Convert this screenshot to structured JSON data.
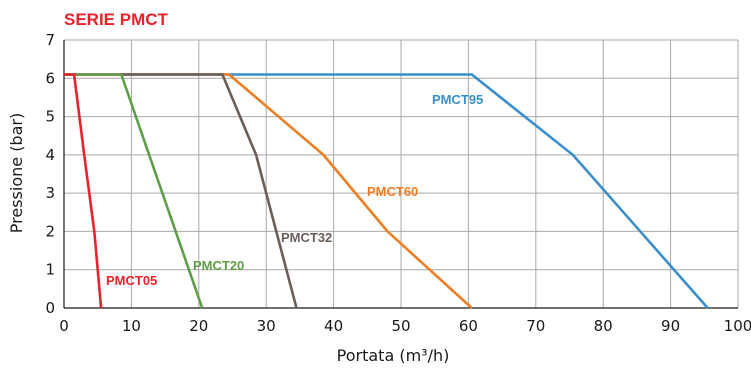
{
  "chart_data": {
    "type": "line",
    "title": "SERIE PMCT",
    "title_color": "#e8232b",
    "xlabel": "Portata (m³/h)",
    "ylabel": "Pressione (bar)",
    "xlim": [
      0,
      100
    ],
    "ylim": [
      0,
      7
    ],
    "xticks": [
      "0",
      "10",
      "20",
      "30",
      "40",
      "50",
      "60",
      "70",
      "80",
      "90",
      "100"
    ],
    "yticks": [
      "0",
      "1",
      "2",
      "3",
      "4",
      "5",
      "6",
      "7"
    ],
    "grid": true,
    "series": [
      {
        "name": "PMCT05",
        "color": "#e8232b",
        "points": [
          [
            0,
            6.1
          ],
          [
            1.5,
            6.1
          ],
          [
            3,
            4.0
          ],
          [
            4.5,
            2.0
          ],
          [
            5.5,
            0
          ]
        ]
      },
      {
        "name": "PMCT20",
        "color": "#5f9e48",
        "points": [
          [
            0,
            6.1
          ],
          [
            8.5,
            6.1
          ],
          [
            20.5,
            0
          ]
        ]
      },
      {
        "name": "PMCT32",
        "color": "#6b5d57",
        "points": [
          [
            0,
            6.1
          ],
          [
            23.5,
            6.1
          ],
          [
            28.5,
            4.0
          ],
          [
            34.5,
            0
          ]
        ]
      },
      {
        "name": "PMCT60",
        "color": "#ef7d22",
        "points": [
          [
            0,
            6.1
          ],
          [
            24.5,
            6.1
          ],
          [
            38.5,
            4.0
          ],
          [
            48,
            2.0
          ],
          [
            60.5,
            0
          ]
        ]
      },
      {
        "name": "PMCT95",
        "color": "#3a8fcb",
        "points": [
          [
            0,
            6.1
          ],
          [
            60.5,
            6.1
          ],
          [
            75.5,
            4.0
          ],
          [
            95.5,
            0
          ]
        ]
      }
    ]
  }
}
